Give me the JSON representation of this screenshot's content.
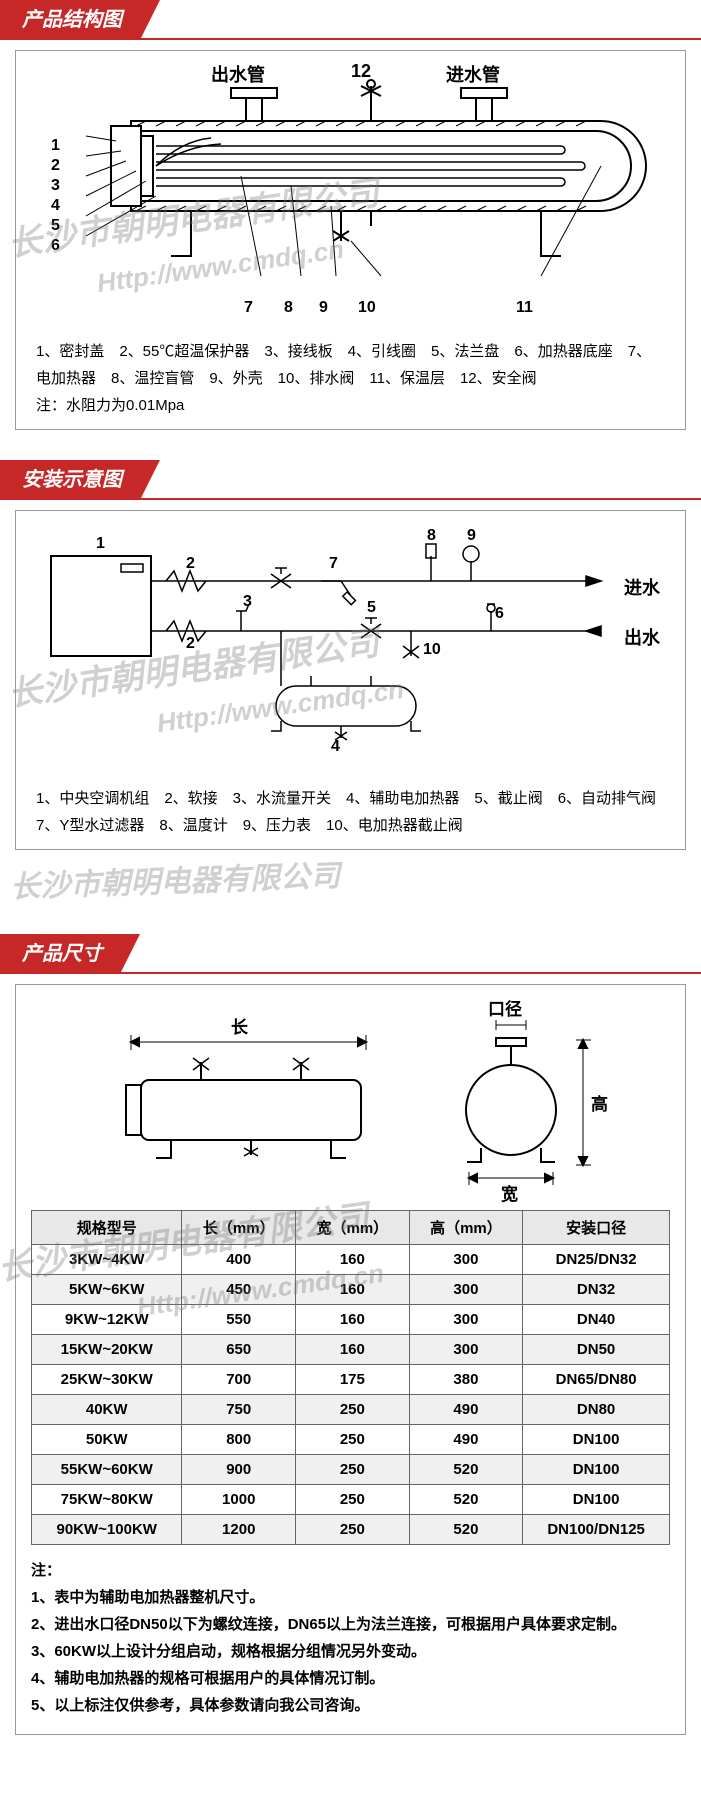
{
  "section1": {
    "title": "产品结构图",
    "labels": {
      "outlet": "出水管",
      "inlet": "进水管"
    },
    "callouts": [
      "1",
      "2",
      "3",
      "4",
      "5",
      "6",
      "7",
      "8",
      "9",
      "10",
      "11",
      "12"
    ],
    "legend": "1、密封盖　2、55℃超温保护器　3、接线板　4、引线圈　5、法兰盘　6、加热器底座　7、电加热器　8、温控盲管　9、外壳　10、排水阀　11、保温层　12、安全阀",
    "note": "注：水阻力为0.01Mpa"
  },
  "section2": {
    "title": "安装示意图",
    "labels": {
      "in": "进水",
      "out": "出水"
    },
    "legend": "1、中央空调机组　2、软接　3、水流量开关　4、辅助电加热器　5、截止阀　6、自动排气阀　7、Y型水过滤器　8、温度计　9、压力表　10、电加热器截止阀"
  },
  "section3": {
    "title": "产品尺寸",
    "dim_labels": {
      "length": "长",
      "width": "宽",
      "height": "高",
      "caliber": "口径"
    },
    "table": {
      "headers": [
        "规格型号",
        "长（mm）",
        "宽（mm）",
        "高（mm）",
        "安装口径"
      ],
      "rows": [
        [
          "3KW~4KW",
          "400",
          "160",
          "300",
          "DN25/DN32"
        ],
        [
          "5KW~6KW",
          "450",
          "160",
          "300",
          "DN32"
        ],
        [
          "9KW~12KW",
          "550",
          "160",
          "300",
          "DN40"
        ],
        [
          "15KW~20KW",
          "650",
          "160",
          "300",
          "DN50"
        ],
        [
          "25KW~30KW",
          "700",
          "175",
          "380",
          "DN65/DN80"
        ],
        [
          "40KW",
          "750",
          "250",
          "490",
          "DN80"
        ],
        [
          "50KW",
          "800",
          "250",
          "490",
          "DN100"
        ],
        [
          "55KW~60KW",
          "900",
          "250",
          "520",
          "DN100"
        ],
        [
          "75KW~80KW",
          "1000",
          "250",
          "520",
          "DN100"
        ],
        [
          "90KW~100KW",
          "1200",
          "250",
          "520",
          "DN100/DN125"
        ]
      ]
    },
    "notes_title": "注：",
    "notes": [
      "1、表中为辅助电加热器整机尺寸。",
      "2、进出水口径DN50以下为螺纹连接，DN65以上为法兰连接，可根据用户具体要求定制。",
      "3、60KW以上设计分组启动，规格根据分组情况另外变动。",
      "4、辅助电加热器的规格可根据用户的具体情况订制。",
      "5、以上标注仅供参考，具体参数请向我公司咨询。"
    ]
  },
  "watermark_text": "长沙市朝明电器有限公司",
  "watermark_url": "Http://www.cmdq.cn"
}
